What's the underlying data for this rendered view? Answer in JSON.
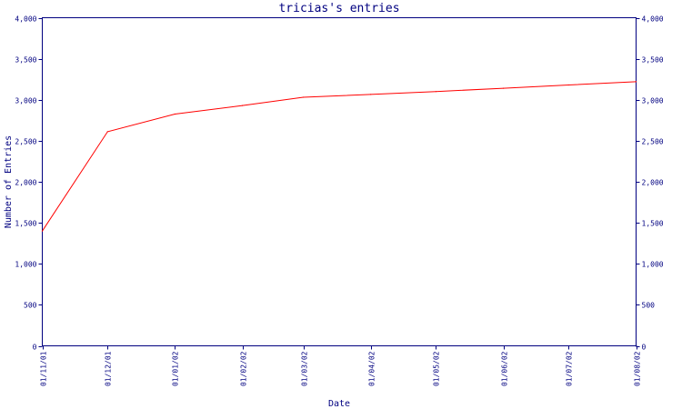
{
  "chart_data": {
    "type": "line",
    "title": "tricias's entries",
    "xlabel": "Date",
    "ylabel": "Number of Entries",
    "x": [
      "01/11/01",
      "01/12/01",
      "01/01/02",
      "01/02/02",
      "01/03/02",
      "01/04/02",
      "01/05/02",
      "01/06/02",
      "01/07/02",
      "01/08/02"
    ],
    "ylim": [
      0,
      4000
    ],
    "yticks": [
      0,
      500,
      1000,
      1500,
      2000,
      2500,
      3000,
      3500,
      4000
    ],
    "ytick_labels": [
      "0",
      "500",
      "1,000",
      "1,500",
      "2,000",
      "2,500",
      "3,000",
      "3,500",
      "4,000"
    ],
    "secondary_y_axis": true,
    "grid": false,
    "series": [
      {
        "color": "#ff0000",
        "points": [
          {
            "x": "01/11/01",
            "y": 1400
          },
          {
            "x": "01/12/01",
            "y": 2610
          },
          {
            "x": "01/01/02",
            "y": 2825
          },
          {
            "x": "01/02/02",
            "y": 2930
          },
          {
            "x": "01/03/02",
            "y": 3030
          },
          {
            "x": "01/04/02",
            "y": 3065
          },
          {
            "x": "01/05/02",
            "y": 3100
          },
          {
            "x": "01/06/02",
            "y": 3140
          },
          {
            "x": "01/07/02",
            "y": 3180
          },
          {
            "x": "01/08/02",
            "y": 3220
          }
        ]
      }
    ]
  },
  "colors": {
    "axis": "#000080",
    "line": "#ff0000",
    "background": "#ffffff"
  }
}
